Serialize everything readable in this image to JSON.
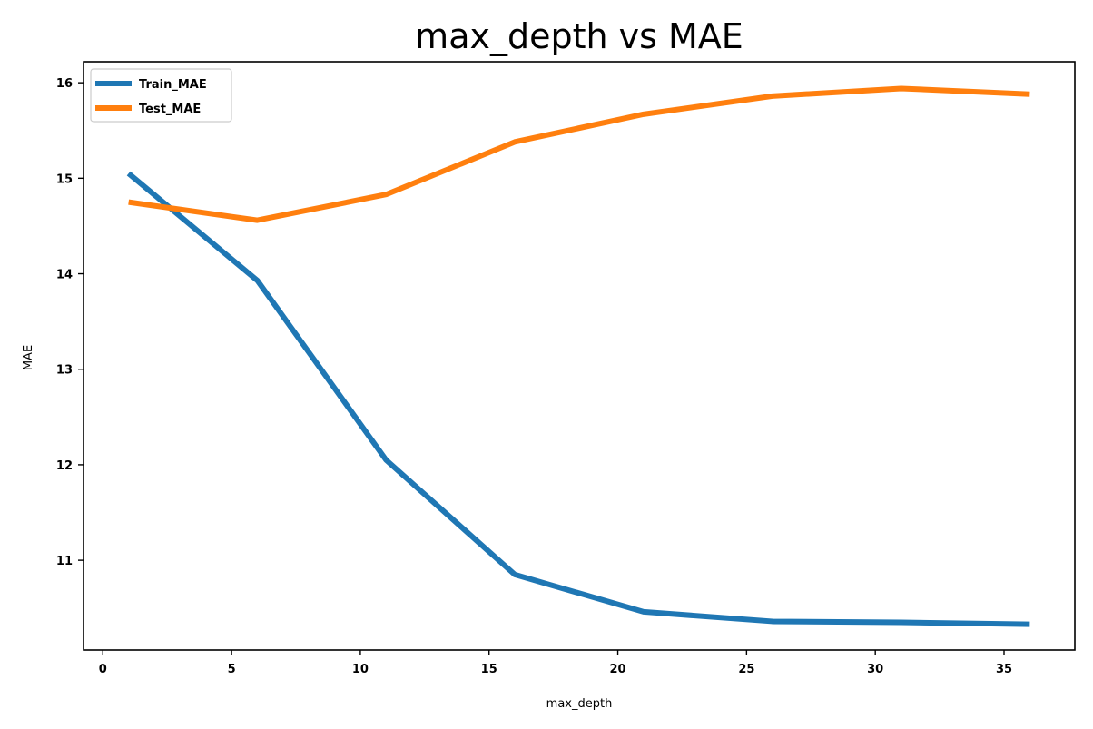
{
  "chart_data": {
    "type": "line",
    "title": "max_depth vs MAE",
    "xlabel": "max_depth",
    "ylabel": "MAE",
    "x": [
      1,
      6,
      11,
      16,
      21,
      26,
      31,
      36
    ],
    "xlim": [
      -0.75,
      37.75
    ],
    "ylim": [
      10.06,
      16.22
    ],
    "xticks": [
      0,
      5,
      10,
      15,
      20,
      25,
      30,
      35
    ],
    "yticks": [
      11,
      12,
      13,
      14,
      15,
      16
    ],
    "grid": false,
    "legend_position": "top-left",
    "series": [
      {
        "name": "Train_MAE",
        "color": "#1f77b4",
        "values": [
          15.05,
          13.93,
          12.05,
          10.85,
          10.46,
          10.36,
          10.35,
          10.33
        ]
      },
      {
        "name": "Test_MAE",
        "color": "#ff7f0e",
        "values": [
          14.75,
          14.56,
          14.83,
          15.38,
          15.67,
          15.86,
          15.94,
          15.88
        ]
      }
    ]
  }
}
